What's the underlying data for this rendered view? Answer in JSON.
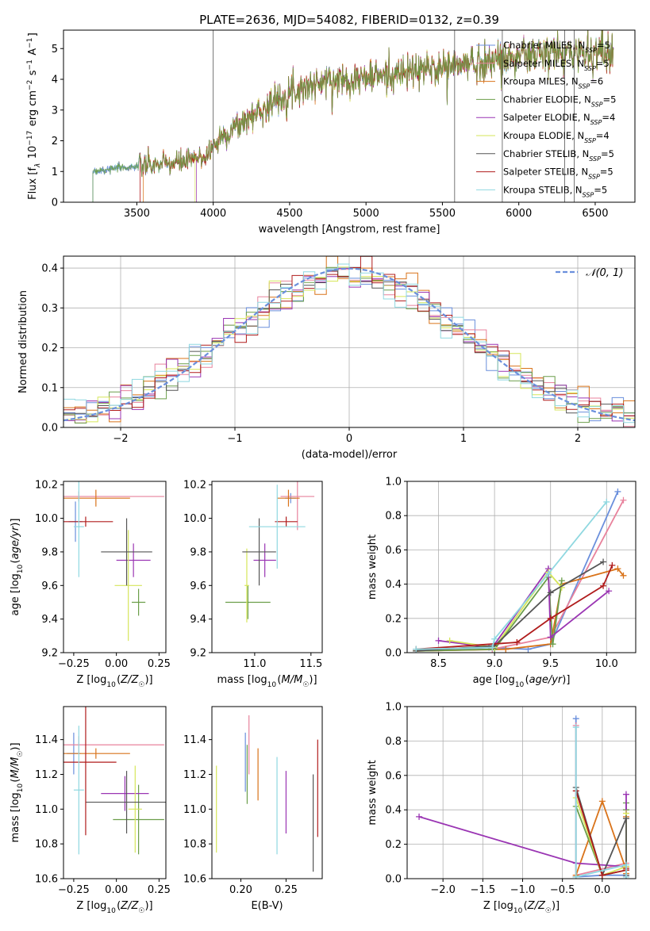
{
  "title": "PLATE=2636, MJD=54082, FIBERID=0132, z=0.39",
  "colors": [
    "#6a8fdc",
    "#e8829c",
    "#d9731a",
    "#6b9e4a",
    "#9a35b3",
    "#d6e65a",
    "#555555",
    "#b01c1c",
    "#8fd8e0"
  ],
  "chart_data": [
    {
      "type": "line",
      "id": "spectrum",
      "xlabel": "wavelength [Angstrom, rest frame]",
      "ylabel": "Flux [f_λ 10^-17 erg cm^-2 s^-1 A^-1]",
      "xlim": [
        3020,
        6760
      ],
      "ylim": [
        0,
        5.6
      ],
      "xticks": [
        3500,
        4000,
        4500,
        5000,
        5500,
        6000,
        6500
      ],
      "yticks": [
        0,
        1,
        2,
        3,
        4,
        5
      ],
      "legend_position": "top-right",
      "series": [
        {
          "name": "Chabrier MILES, N_SSP=5"
        },
        {
          "name": "Salpeter MILES, N_SSP=5"
        },
        {
          "name": "Kroupa MILES, N_SSP=6"
        },
        {
          "name": "Chabrier ELODIE, N_SSP=5"
        },
        {
          "name": "Salpeter ELODIE, N_SSP=4"
        },
        {
          "name": "Kroupa ELODIE, N_SSP=4"
        },
        {
          "name": "Chabrier STELIB, N_SSP=5"
        },
        {
          "name": "Salpeter STELIB, N_SSP=5"
        },
        {
          "name": "Kroupa STELIB, N_SSP=5"
        }
      ],
      "continuum": {
        "x": [
          3200,
          3400,
          3600,
          3800,
          3950,
          4050,
          4250,
          4500,
          4750,
          5000,
          5250,
          5500,
          5750,
          6000,
          6250,
          6500,
          6620
        ],
        "y": [
          1.0,
          1.12,
          1.2,
          1.3,
          1.5,
          2.1,
          2.8,
          3.6,
          3.95,
          4.05,
          4.2,
          4.4,
          4.55,
          4.75,
          4.85,
          4.9,
          4.95
        ]
      },
      "series_start": [
        3210,
        3520,
        3540,
        3210,
        3890,
        3880,
        3210,
        3520,
        3210
      ]
    },
    {
      "type": "bar",
      "id": "residuals",
      "xlabel": "(data-model)/error",
      "ylabel": "Normed distribution",
      "xlim": [
        -2.5,
        2.5
      ],
      "ylim": [
        0,
        0.43
      ],
      "xticks": [
        -2,
        -1,
        0,
        1,
        2
      ],
      "yticks": [
        0.0,
        0.1,
        0.2,
        0.3,
        0.4
      ],
      "grid": true,
      "legend_position": "top-right",
      "reference_label": "𝒩(0, 1)",
      "bin_width": 0.1
    },
    {
      "type": "scatter",
      "id": "age-vs-z",
      "xlabel": "Z [log10(Z/Z☉)]",
      "ylabel": "age  [log10(age/yr)]",
      "xlim": [
        -0.31,
        0.29
      ],
      "ylim": [
        9.2,
        10.22
      ],
      "xticks": [
        -0.25,
        0.0,
        0.25
      ],
      "xticklabels": [
        "−0.25",
        "0.00",
        "0.25"
      ],
      "yticks": [
        9.2,
        9.4,
        9.6,
        9.8,
        10.0,
        10.2
      ],
      "x": [
        -0.24,
        -0.22,
        -0.12,
        0.13,
        0.1,
        0.07,
        0.06,
        -0.18,
        -0.22
      ],
      "xerr": [
        0.04,
        0.5,
        0.2,
        0.04,
        0.1,
        0.08,
        0.15,
        0.16,
        0.03
      ],
      "y": [
        9.98,
        10.13,
        10.12,
        9.5,
        9.75,
        9.6,
        9.8,
        9.98,
        9.95
      ],
      "yerr": [
        0.12,
        0.03,
        0.05,
        0.08,
        0.1,
        0.33,
        0.2,
        0.03,
        0.3
      ]
    },
    {
      "type": "scatter",
      "id": "age-vs-mass",
      "xlabel": "mass [log10(M/M☉)]",
      "ylabel": "",
      "xlim": [
        10.62,
        11.6
      ],
      "ylim": [
        9.2,
        10.22
      ],
      "xticks": [
        11.0,
        11.5
      ],
      "yticks": [
        9.2,
        9.4,
        9.6,
        9.8,
        10.0,
        10.2
      ],
      "x": [
        11.32,
        11.38,
        11.3,
        10.94,
        11.09,
        10.93,
        11.04,
        11.28,
        11.2
      ],
      "xerr": [
        0.05,
        0.15,
        0.1,
        0.2,
        0.1,
        0.02,
        0.15,
        0.1,
        0.25
      ],
      "y": [
        10.12,
        10.13,
        10.12,
        9.5,
        9.75,
        9.6,
        9.8,
        9.98,
        9.95
      ],
      "yerr": [
        0.03,
        0.2,
        0.05,
        0.1,
        0.1,
        0.22,
        0.2,
        0.03,
        0.25
      ]
    },
    {
      "type": "line",
      "id": "mass-weight-vs-age",
      "xlabel": "age  [log10(age/yr)]",
      "ylabel": "mass weight",
      "xlim": [
        8.22,
        10.26
      ],
      "ylim": [
        0,
        1.0
      ],
      "xticks": [
        8.5,
        9.0,
        9.5,
        10.0
      ],
      "yticks": [
        0.0,
        0.2,
        0.4,
        0.6,
        0.8,
        1.0
      ],
      "grid": true,
      "series": [
        {
          "x": [
            8.3,
            8.95,
            9.3,
            9.5,
            10.1
          ],
          "y": [
            0.01,
            0.03,
            0.02,
            0.05,
            0.94
          ]
        },
        {
          "x": [
            8.3,
            8.98,
            9.5,
            10.15
          ],
          "y": [
            0.01,
            0.02,
            0.09,
            0.89
          ]
        },
        {
          "x": [
            8.3,
            9.1,
            9.5,
            9.6,
            10.1,
            10.15
          ],
          "y": [
            0.01,
            0.02,
            0.05,
            0.4,
            0.49,
            0.45
          ]
        },
        {
          "x": [
            8.3,
            9.0,
            9.48,
            9.52,
            9.6
          ],
          "y": [
            0.01,
            0.02,
            0.44,
            0.05,
            0.42
          ]
        },
        {
          "x": [
            8.5,
            8.98,
            9.48,
            9.5,
            10.02
          ],
          "y": [
            0.07,
            0.03,
            0.49,
            0.09,
            0.36
          ]
        },
        {
          "x": [
            8.6,
            9.0,
            9.48,
            9.6
          ],
          "y": [
            0.07,
            0.03,
            0.47,
            0.38
          ]
        },
        {
          "x": [
            8.3,
            9.0,
            9.5,
            9.97
          ],
          "y": [
            0.01,
            0.04,
            0.35,
            0.53
          ]
        },
        {
          "x": [
            8.3,
            9.2,
            9.5,
            9.97,
            10.05
          ],
          "y": [
            0.02,
            0.06,
            0.2,
            0.39,
            0.51
          ]
        },
        {
          "x": [
            8.3,
            8.98,
            9.0,
            9.48,
            10.0
          ],
          "y": [
            0.02,
            0.03,
            0.08,
            0.46,
            0.88
          ]
        }
      ]
    },
    {
      "type": "scatter",
      "id": "mass-vs-z",
      "xlabel": "Z [log10(Z/Z☉)]",
      "ylabel": "mass [log10(M/M☉)]",
      "xlim": [
        -0.31,
        0.29
      ],
      "ylim": [
        10.6,
        11.59
      ],
      "xticks": [
        -0.25,
        0.0,
        0.25
      ],
      "xticklabels": [
        "−0.25",
        "0.00",
        "0.25"
      ],
      "yticks": [
        10.6,
        10.8,
        11.0,
        11.2,
        11.4
      ],
      "x": [
        -0.25,
        -0.22,
        -0.12,
        0.13,
        0.05,
        0.11,
        0.06,
        -0.18,
        -0.22
      ],
      "xerr": [
        0.04,
        0.5,
        0.2,
        0.15,
        0.14,
        0.04,
        0.24,
        0.18,
        0.03
      ],
      "y": [
        11.32,
        11.37,
        11.32,
        10.94,
        11.09,
        11.0,
        11.04,
        11.27,
        11.11
      ],
      "yerr": [
        0.12,
        0.05,
        0.03,
        0.2,
        0.1,
        0.25,
        0.18,
        0.42,
        0.37
      ]
    },
    {
      "type": "scatter",
      "id": "mass-vs-ebv",
      "xlabel": "E(B-V)",
      "ylabel": "",
      "xlim": [
        0.168,
        0.29
      ],
      "ylim": [
        10.6,
        11.59
      ],
      "xticks": [
        0.2,
        0.25
      ],
      "xticklabels": [
        "0.20",
        "0.25"
      ],
      "yticks": [
        10.6,
        10.8,
        11.0,
        11.2,
        11.4
      ],
      "x": [
        0.205,
        0.209,
        0.219,
        0.207,
        0.25,
        0.173,
        0.28,
        0.285,
        0.24
      ],
      "y": [
        11.27,
        11.37,
        11.2,
        11.2,
        11.04,
        11.0,
        10.92,
        11.12,
        11.02
      ],
      "yerr": [
        0.17,
        0.17,
        0.15,
        0.17,
        0.18,
        0.25,
        0.28,
        0.28,
        0.28
      ]
    },
    {
      "type": "line",
      "id": "mass-weight-vs-z",
      "xlabel": "Z [log10(Z/Z☉)]",
      "ylabel": "mass weight",
      "xlim": [
        -2.45,
        0.42
      ],
      "ylim": [
        0,
        1.0
      ],
      "xticks": [
        -2.0,
        -1.5,
        -1.0,
        -0.5,
        0.0
      ],
      "xticklabels": [
        "−2.0",
        "−1.5",
        "−1.0",
        "−0.5",
        "0.0"
      ],
      "yticks": [
        0.0,
        0.2,
        0.4,
        0.6,
        0.8,
        1.0
      ],
      "grid": true,
      "series": [
        {
          "x": [
            -0.33,
            -0.33,
            0.0,
            0.3,
            0.3
          ],
          "y": [
            0.93,
            0.01,
            0.02,
            0.02,
            0.05
          ]
        },
        {
          "x": [
            -0.33,
            -0.33,
            0.3,
            0.3
          ],
          "y": [
            0.89,
            0.02,
            0.09,
            0.01
          ]
        },
        {
          "x": [
            -0.33,
            -0.33,
            0.0,
            0.3,
            0.3,
            0.3
          ],
          "y": [
            0.01,
            0.02,
            0.45,
            0.05,
            0.03,
            0.36
          ]
        },
        {
          "x": [
            -0.33,
            0.0,
            0.3,
            0.3,
            0.3
          ],
          "y": [
            0.42,
            0.02,
            0.05,
            0.4,
            0.44
          ]
        },
        {
          "x": [
            -2.3,
            -0.33,
            0.3,
            0.3,
            0.3
          ],
          "y": [
            0.36,
            0.09,
            0.07,
            0.49,
            0.02
          ]
        },
        {
          "x": [
            -0.33,
            0.0,
            0.3,
            0.3
          ],
          "y": [
            0.47,
            0.02,
            0.07,
            0.38
          ]
        },
        {
          "x": [
            -0.33,
            0.0,
            0.3,
            0.3
          ],
          "y": [
            0.53,
            0.02,
            0.35,
            0.02
          ]
        },
        {
          "x": [
            -0.33,
            0.0,
            0.3,
            0.3
          ],
          "y": [
            0.51,
            0.02,
            0.05,
            0.06
          ]
        },
        {
          "x": [
            -0.33,
            -0.33,
            0.3,
            0.3
          ],
          "y": [
            0.88,
            0.01,
            0.08,
            0.01
          ]
        }
      ]
    }
  ]
}
